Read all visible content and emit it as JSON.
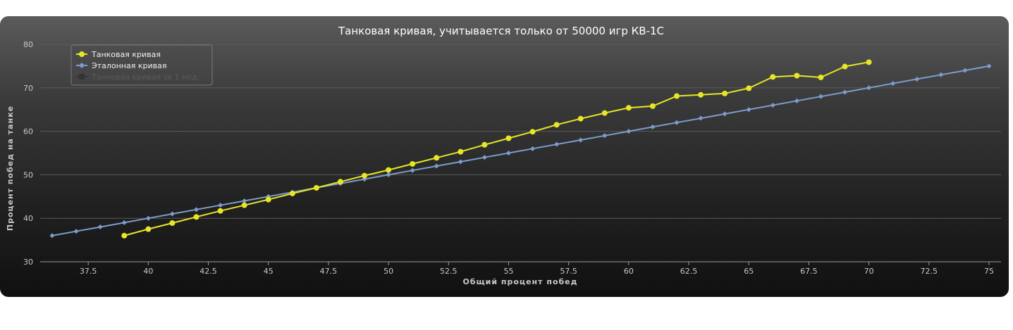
{
  "chart_data": {
    "type": "line",
    "title": "Танковая кривая, учитывается только от 50000 игр КВ-1С",
    "xlabel": "Общий процент побед",
    "ylabel": "Процент побед на танке",
    "xlim": [
      35.5,
      75.5
    ],
    "ylim": [
      30,
      80
    ],
    "x_ticks": [
      "37.5",
      "40",
      "42.5",
      "45",
      "47.5",
      "50",
      "52.5",
      "55",
      "57.5",
      "60",
      "62.5",
      "65",
      "67.5",
      "70",
      "72.5",
      "75"
    ],
    "y_ticks": [
      "30",
      "40",
      "50",
      "60",
      "70",
      "80"
    ],
    "grid": "horizontal",
    "legend_position": "top-left",
    "series": [
      {
        "name": "Танковая кривая",
        "color": "#e6e626",
        "marker": "circle",
        "x": [
          39,
          40,
          41,
          42,
          43,
          44,
          45,
          46,
          47,
          48,
          49,
          50,
          51,
          52,
          53,
          54,
          55,
          56,
          57,
          58,
          59,
          60,
          61,
          62,
          63,
          64,
          65,
          66,
          67,
          68,
          69,
          70
        ],
        "y": [
          36.0,
          37.5,
          38.9,
          40.3,
          41.7,
          43.0,
          44.3,
          45.7,
          47.0,
          48.4,
          49.8,
          51.1,
          52.5,
          53.9,
          55.3,
          56.9,
          58.4,
          59.9,
          61.5,
          62.9,
          64.2,
          65.4,
          65.8,
          68.1,
          68.4,
          68.7,
          69.9,
          72.5,
          72.8,
          72.4,
          74.9,
          75.9
        ]
      },
      {
        "name": "Эталонная кривая",
        "color": "#7d9ccc",
        "marker": "diamond",
        "x": [
          36,
          37,
          38,
          39,
          40,
          41,
          42,
          43,
          44,
          45,
          46,
          47,
          48,
          49,
          50,
          51,
          52,
          53,
          54,
          55,
          56,
          57,
          58,
          59,
          60,
          61,
          62,
          63,
          64,
          65,
          66,
          67,
          68,
          69,
          70,
          71,
          72,
          73,
          74,
          75
        ],
        "y": [
          36,
          37,
          38,
          39,
          40,
          41,
          42,
          43,
          44,
          45,
          46,
          47,
          48,
          49,
          50,
          51,
          52,
          53,
          54,
          55,
          56,
          57,
          58,
          59,
          60,
          61,
          62,
          63,
          64,
          65,
          66,
          67,
          68,
          69,
          70,
          71,
          72,
          73,
          74,
          75
        ]
      },
      {
        "name": "Танковая кривая за 1 нед.",
        "color": "#333333",
        "marker": "square",
        "x": [],
        "y": []
      }
    ]
  }
}
